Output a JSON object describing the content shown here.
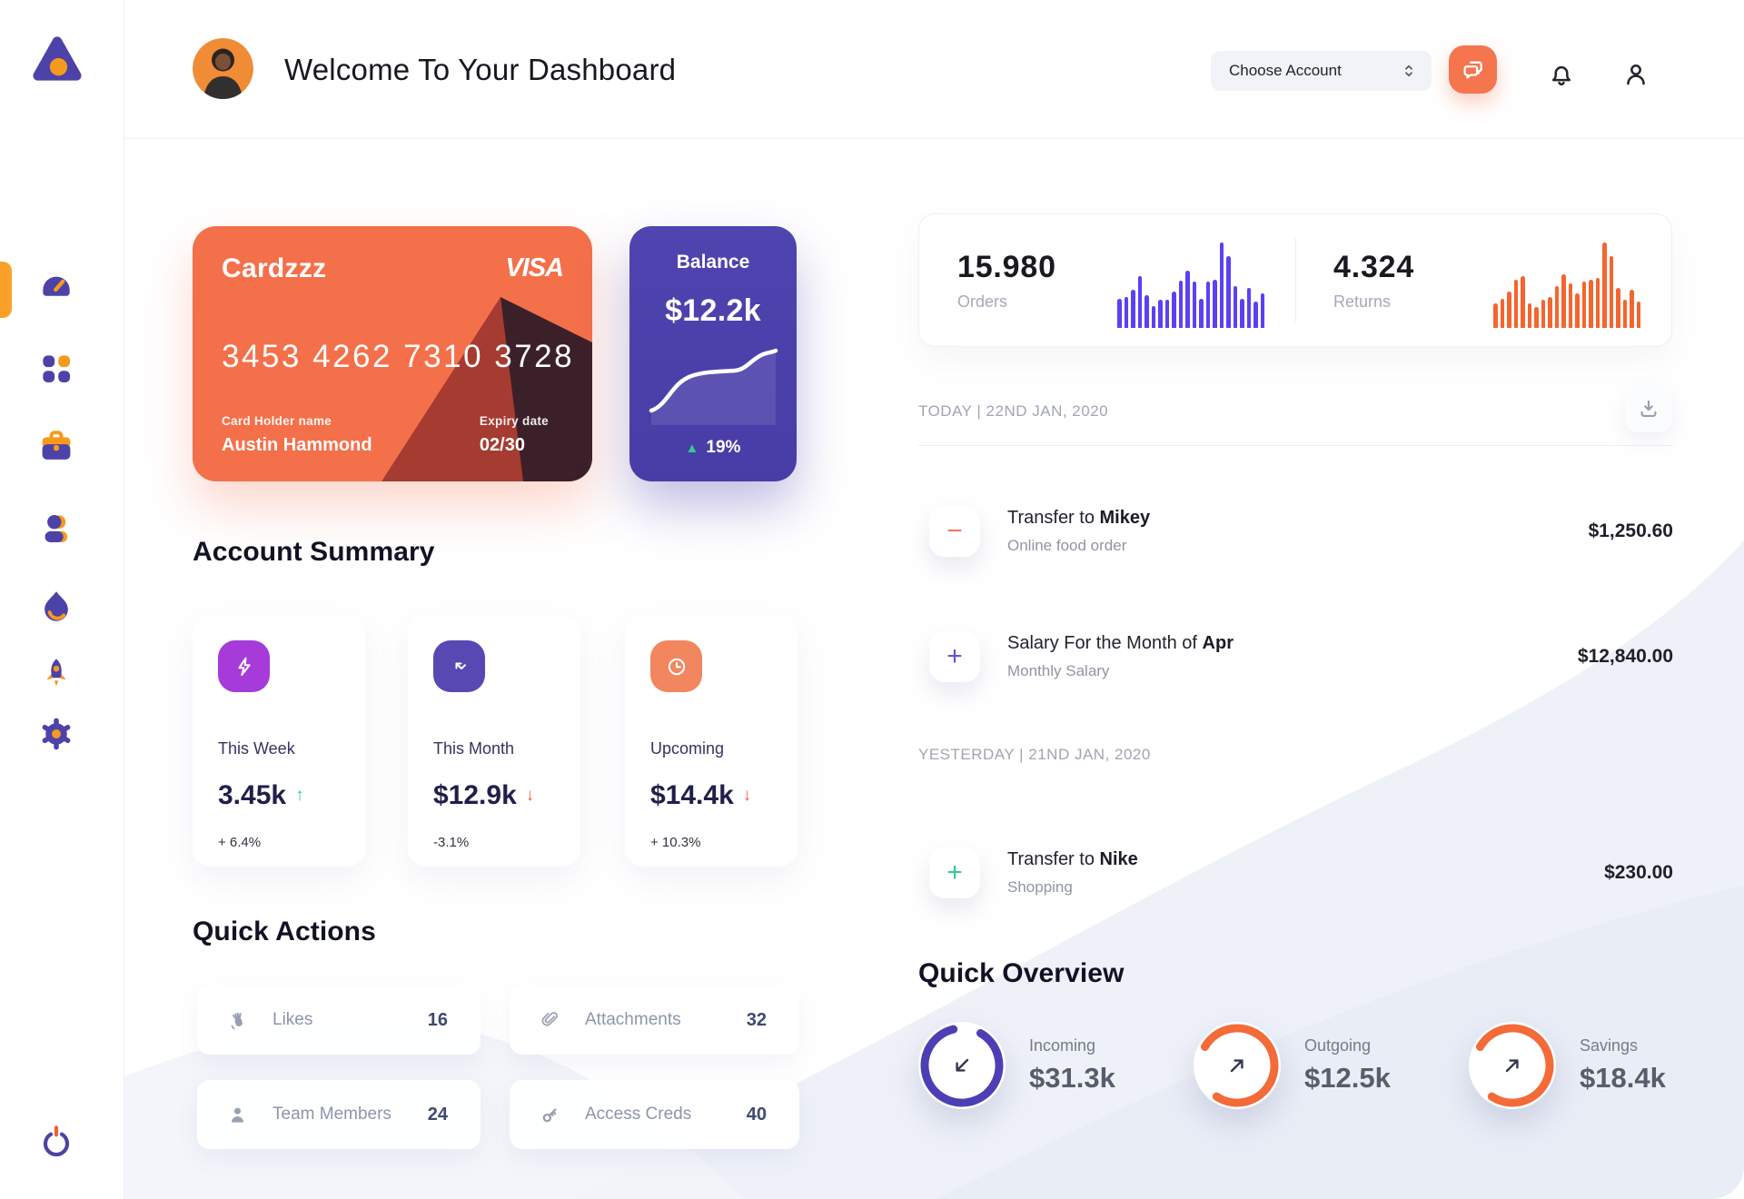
{
  "header": {
    "title": "Welcome To Your Dashboard",
    "account_selector_label": "Choose Account"
  },
  "sidebar": {
    "logo_icon": "triangle-dot-logo",
    "items": [
      {
        "name": "dashboard",
        "icon": "speedometer-icon",
        "active": true
      },
      {
        "name": "apps",
        "icon": "grid-dots-icon",
        "active": false
      },
      {
        "name": "work",
        "icon": "briefcase-icon",
        "active": false
      },
      {
        "name": "contacts",
        "icon": "user-icon",
        "active": false
      },
      {
        "name": "trending",
        "icon": "flame-icon",
        "active": false
      },
      {
        "name": "launch",
        "icon": "rocket-icon",
        "active": false
      },
      {
        "name": "settings",
        "icon": "gear-icon",
        "active": false
      }
    ],
    "power_icon": "power-icon"
  },
  "wallet_card": {
    "name": "Cardzzz",
    "brand": "VISA",
    "number": "3453 4262 7310 3728",
    "holder_label": "Card Holder name",
    "holder_name": "Austin Hammond",
    "expiry_label": "Expiry date",
    "expiry": "02/30"
  },
  "balance_card": {
    "label": "Balance",
    "value": "$12.2k",
    "change_arrow": "▲",
    "change": "19%"
  },
  "stats": {
    "orders": {
      "value": "15.980",
      "label": "Orders",
      "color": "#5a41f5",
      "bars": [
        33,
        36,
        44,
        60,
        38,
        25,
        32,
        32,
        42,
        55,
        66,
        54,
        34,
        54,
        56,
        100,
        84,
        48,
        34,
        46,
        30,
        40
      ]
    },
    "returns": {
      "value": "4.324",
      "label": "Returns",
      "color": "#f4652f",
      "bars": [
        28,
        34,
        42,
        56,
        60,
        28,
        24,
        32,
        36,
        48,
        62,
        52,
        40,
        54,
        56,
        58,
        100,
        84,
        46,
        32,
        44,
        30
      ]
    }
  },
  "account_summary": {
    "title": "Account Summary",
    "cards": [
      {
        "label": "This Week",
        "value": "3.45k",
        "trend_arrow": "↑",
        "trend_color": "#2ecc8e",
        "delta": "+ 6.4%",
        "icon": "lightning-icon",
        "icon_color": "#a63bd9"
      },
      {
        "label": "This Month",
        "value": "$12.9k",
        "trend_arrow": "↓",
        "trend_color": "#f0614f",
        "delta": "-3.1%",
        "icon": "trend-arrows-icon",
        "icon_color": "#5748b4"
      },
      {
        "label": "Upcoming",
        "value": "$14.4k",
        "trend_arrow": "↓",
        "trend_color": "#f0614f",
        "delta": "+ 10.3%",
        "icon": "clock-icon",
        "icon_color": "#f2875f"
      }
    ]
  },
  "quick_actions": {
    "title": "Quick Actions",
    "items": [
      {
        "label": "Likes",
        "value": "16",
        "icon": "clap-icon"
      },
      {
        "label": "Attachments",
        "value": "32",
        "icon": "paperclip-icon"
      },
      {
        "label": "Team Members",
        "value": "24",
        "icon": "member-icon"
      },
      {
        "label": "Access Creds",
        "value": "40",
        "icon": "key-icon"
      }
    ]
  },
  "transactions": {
    "today_label": "TODAY | 22ND JAN, 2020",
    "yesterday_label": "YESTERDAY | 21ND JAN, 2020",
    "rows": [
      {
        "title_prefix": "Transfer to ",
        "title_bold": "Mikey",
        "subtitle": "Online food order",
        "amount": "$1,250.60",
        "sign": "−",
        "sign_color": "#f0795c"
      },
      {
        "title_prefix": "Salary For the Month of ",
        "title_bold": "Apr",
        "subtitle": "Monthly Salary",
        "amount": "$12,840.00",
        "sign": "+",
        "sign_color": "#6554d8"
      },
      {
        "title_prefix": "Transfer to ",
        "title_bold": "Nike",
        "subtitle": "Shopping",
        "amount": "$230.00",
        "sign": "+",
        "sign_color": "#35c79b"
      }
    ]
  },
  "quick_overview": {
    "title": "Quick Overview",
    "items": [
      {
        "label": "Incoming",
        "value": "$31.3k",
        "percent": 88,
        "color": "#4c3fb5",
        "direction": "down-left-arrow-icon"
      },
      {
        "label": "Outgoing",
        "value": "$12.5k",
        "percent": 76,
        "color": "#f46a38",
        "direction": "up-right-arrow-icon"
      },
      {
        "label": "Savings",
        "value": "$18.4k",
        "percent": 76,
        "color": "#f46a38",
        "direction": "up-right-arrow-icon"
      }
    ]
  }
}
